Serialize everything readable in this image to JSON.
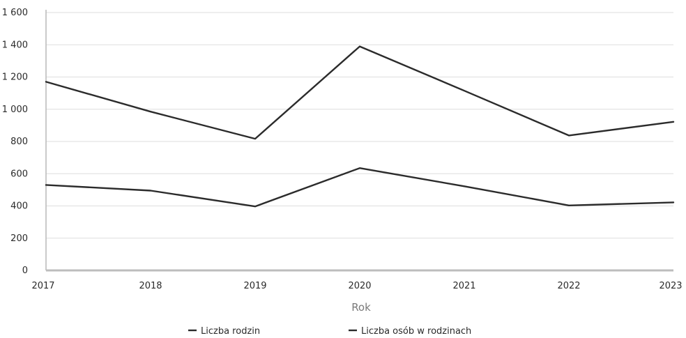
{
  "chart_data": {
    "type": "line",
    "x": [
      "2017",
      "2018",
      "2019",
      "2020",
      "2021",
      "2022",
      "2023"
    ],
    "series": [
      {
        "name": "Liczba rodzin",
        "values": [
          530,
          495,
          397,
          635,
          522,
          403,
          422
        ]
      },
      {
        "name": "Liczba osób w rodzinach",
        "values": [
          1170,
          985,
          817,
          1390,
          1115,
          837,
          922
        ]
      }
    ],
    "title": "",
    "xlabel": "Rok",
    "ylabel": "",
    "ylim": [
      0,
      1600
    ],
    "yticks": [
      0,
      200,
      400,
      600,
      800,
      1000,
      1200,
      1400,
      1600
    ],
    "ytick_labels": [
      "0",
      "200",
      "400",
      "600",
      "800",
      "1 000",
      "1 200",
      "1 400",
      "1 600"
    ],
    "grid": "horizontal",
    "legend": "bottom-center",
    "line_color": "#2b2b2b",
    "grid_color": "#dedede"
  }
}
